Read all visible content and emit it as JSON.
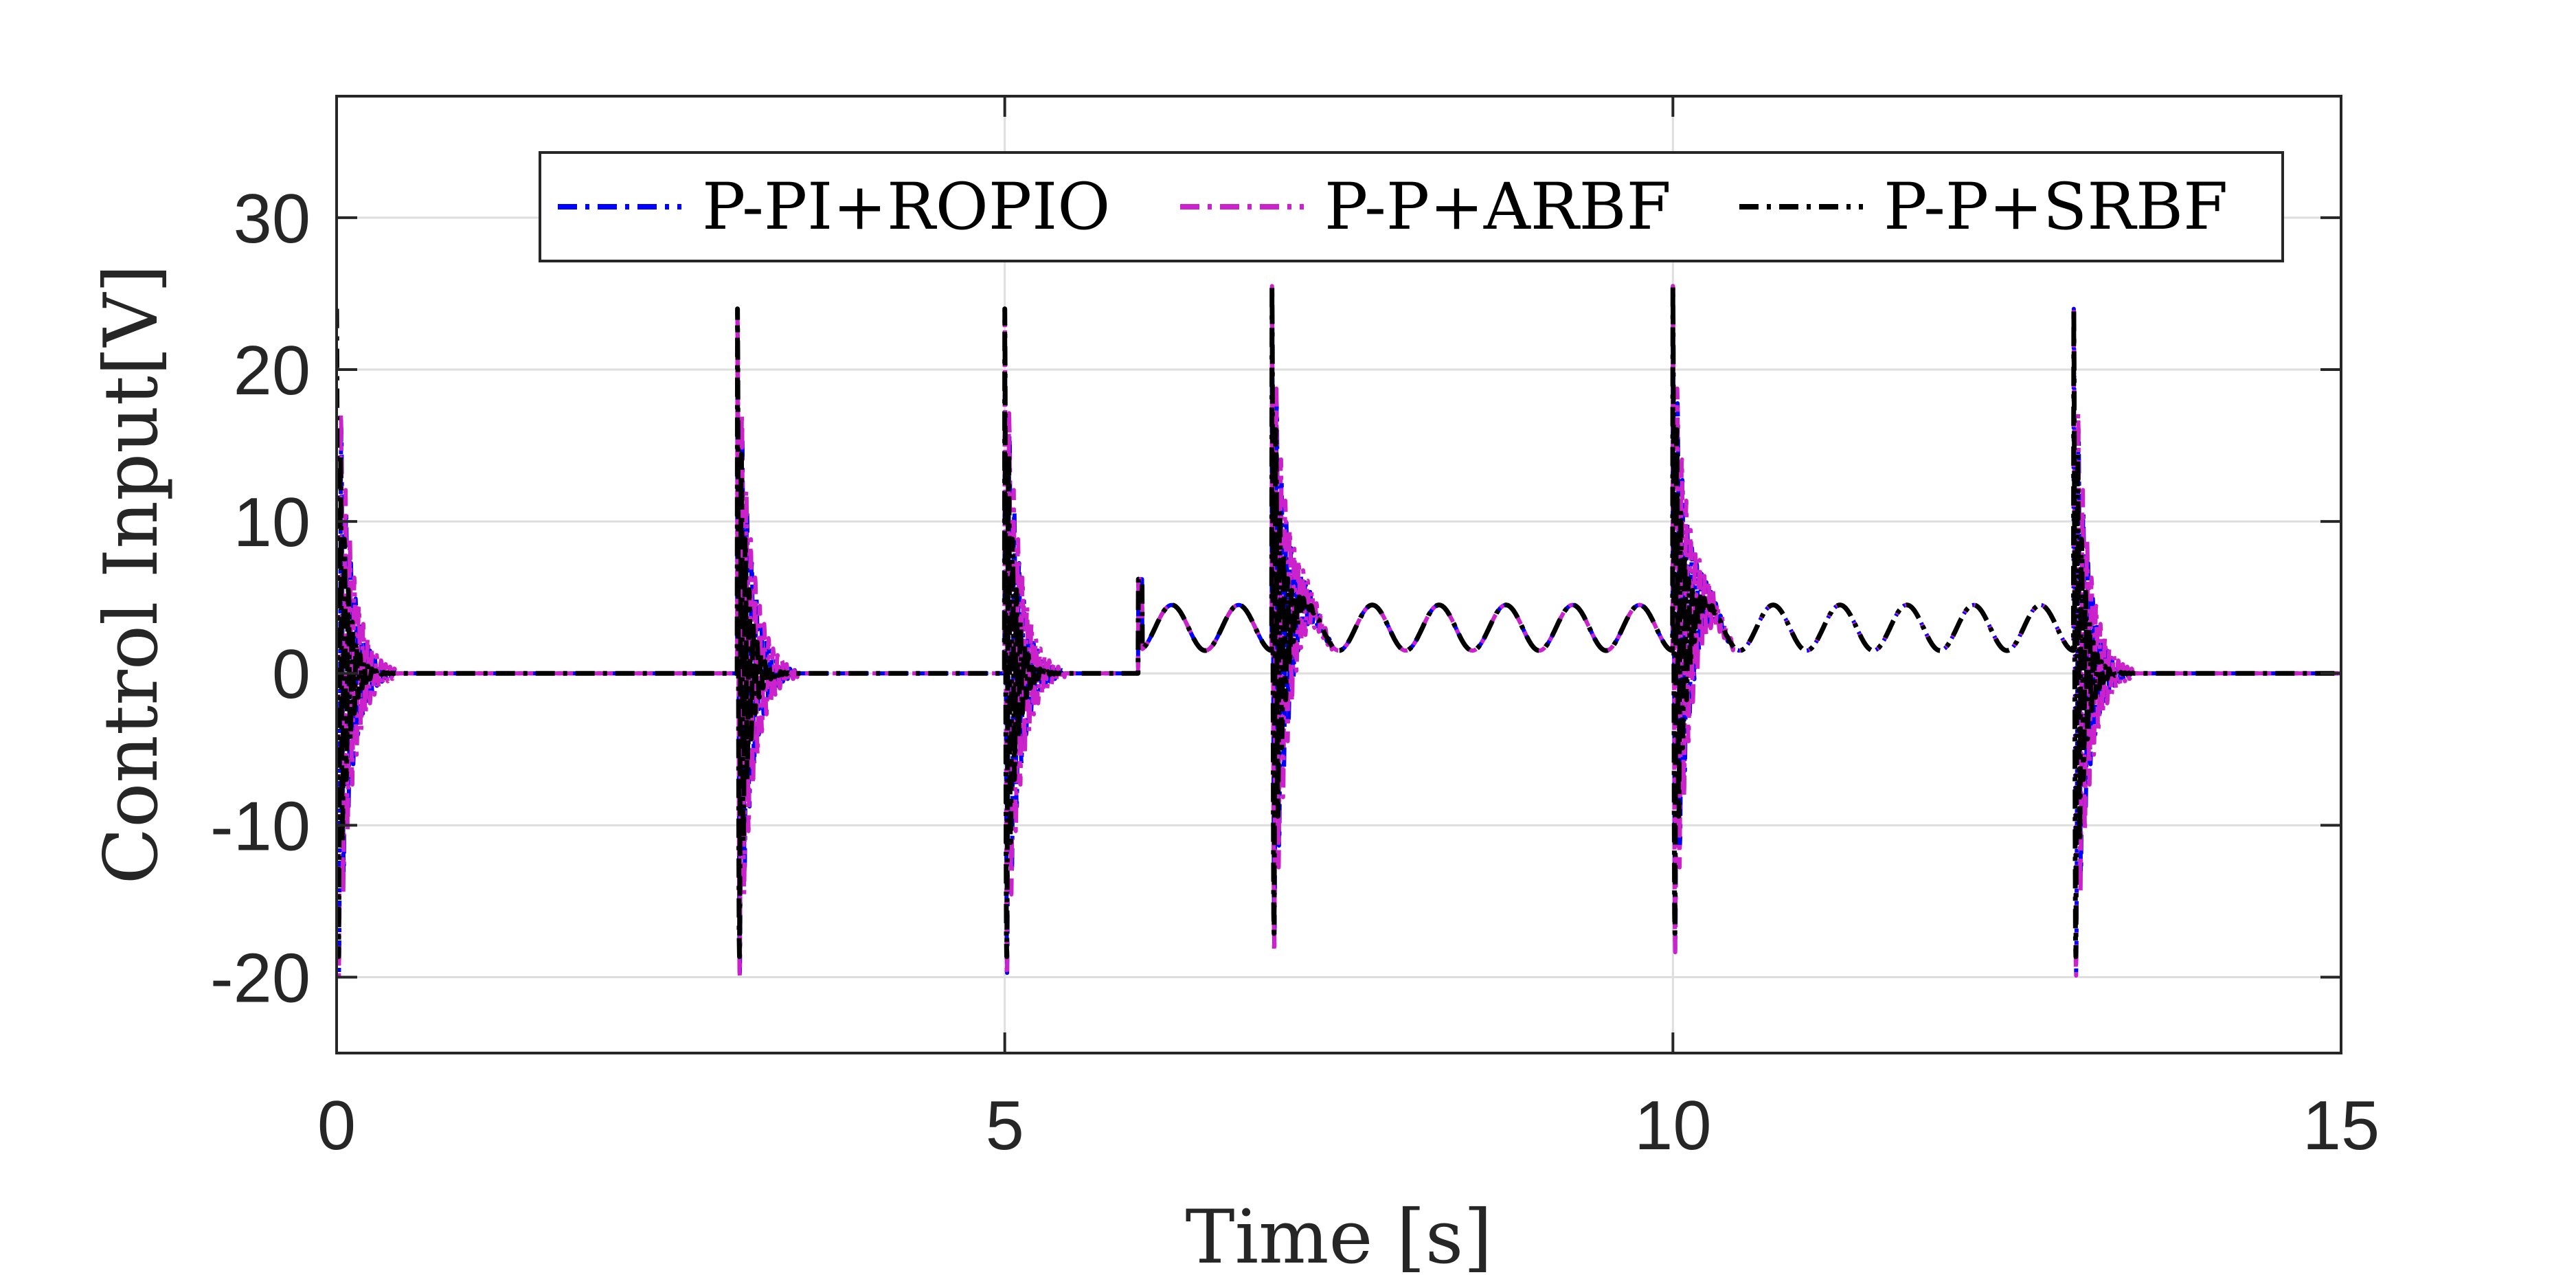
{
  "chart_data": {
    "type": "line",
    "title": "",
    "xlabel": "Time [s]",
    "ylabel": "Control Input[V]",
    "xlim": [
      0,
      15
    ],
    "ylim": [
      -25,
      38
    ],
    "xticks": [
      0,
      5,
      10,
      15
    ],
    "xtick_labels": [
      "0",
      "5",
      "10",
      "15"
    ],
    "yticks": [
      -20,
      -10,
      0,
      10,
      20,
      30
    ],
    "ytick_labels": [
      "-20",
      "-10",
      "0",
      "10",
      "20",
      "30"
    ],
    "grid": true,
    "legend_position": "top, horizontal",
    "switch_times": [
      0,
      3,
      5,
      7,
      10,
      13
    ],
    "sinusoid": {
      "intervals": [
        [
          6,
          10
        ],
        [
          10,
          13
        ]
      ],
      "center": 3.0,
      "amplitude": 1.5,
      "period": 0.5,
      "step_at": 6,
      "step_peak": 6.2
    },
    "series": [
      {
        "name": "P-PI+ROPIO",
        "color": "#0000ff",
        "dash": "dashdot",
        "spike_amplitude": 24,
        "spike_decay": 0.09,
        "spike_freq": 28
      },
      {
        "name": "P-P+ARBF",
        "color": "#cc22cc",
        "dash": "dashdot",
        "spike_amplitude": 24,
        "spike_decay": 0.1,
        "spike_freq": 30
      },
      {
        "name": "P-P+SRBF",
        "color": "#000000",
        "dash": "dashdot",
        "spike_amplitude": 24,
        "spike_decay": 0.06,
        "spike_freq": 34
      }
    ]
  }
}
